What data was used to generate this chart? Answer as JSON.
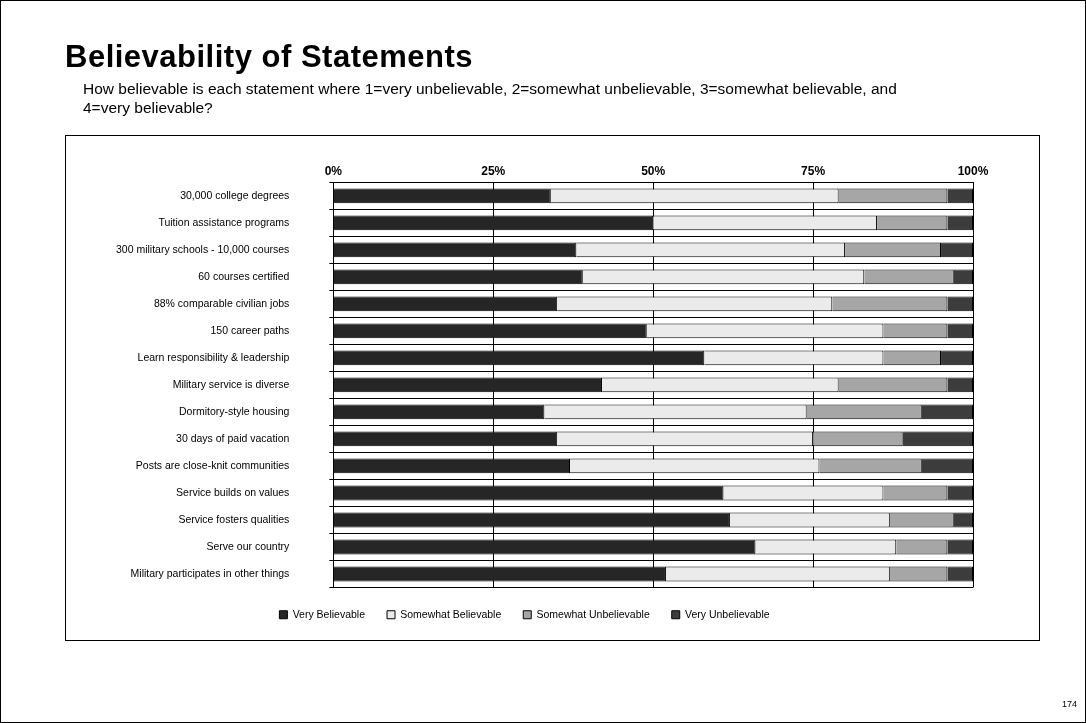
{
  "chart_data": {
    "type": "bar",
    "orientation": "horizontal",
    "stacked": true,
    "title": "Believability of Statements",
    "subtitle": "How believable is each statement where 1=very unbelievable, 2=somewhat unbelievable, 3=somewhat believable, and 4=very believable?",
    "categories": [
      "30,000 college degrees",
      "Tuition assistance programs",
      "300 military schools - 10,000 courses",
      "60 courses certified",
      "88% comparable civilian jobs",
      "150 career paths",
      "Learn responsibility & leadership",
      "Military service is diverse",
      "Dormitory-style housing",
      "30 days of paid vacation",
      "Posts are close-knit communities",
      "Service builds on values",
      "Service fosters qualities",
      "Serve our country",
      "Military participates in other things"
    ],
    "series": [
      {
        "name": "Very Believable",
        "color": "#262626",
        "values": [
          34,
          50,
          38,
          39,
          35,
          49,
          58,
          42,
          33,
          35,
          37,
          61,
          62,
          66,
          52
        ]
      },
      {
        "name": "Somewhat Believable",
        "color": "#ebebeb",
        "values": [
          45,
          35,
          42,
          44,
          43,
          37,
          28,
          37,
          41,
          40,
          39,
          25,
          25,
          22,
          35
        ]
      },
      {
        "name": "Somewhat Unbelievable",
        "color": "#a6a6a6",
        "values": [
          17,
          11,
          15,
          14,
          18,
          10,
          9,
          17,
          18,
          14,
          16,
          10,
          10,
          8,
          9
        ]
      },
      {
        "name": "Very Unbelievable",
        "color": "#3c3c3c",
        "values": [
          4,
          4,
          5,
          3,
          4,
          4,
          5,
          4,
          8,
          11,
          8,
          4,
          3,
          4,
          4
        ]
      }
    ],
    "xlim": [
      0,
      100
    ],
    "xticks": [
      {
        "value": 0,
        "label": "0%"
      },
      {
        "value": 25,
        "label": "25%"
      },
      {
        "value": 50,
        "label": "50%"
      },
      {
        "value": 75,
        "label": "75%"
      },
      {
        "value": 100,
        "label": "100%"
      }
    ],
    "grid": true,
    "legend": "bottom",
    "annotations": [
      "174"
    ]
  }
}
